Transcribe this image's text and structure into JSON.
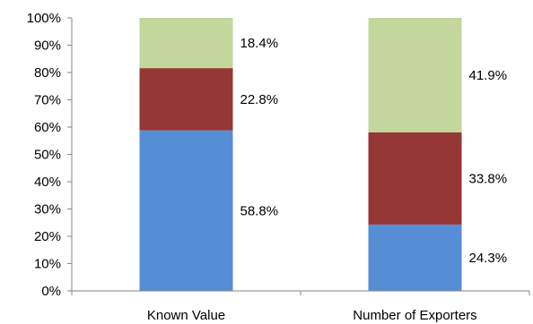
{
  "chart_data": {
    "type": "bar",
    "stacked": true,
    "categories": [
      "Known Value",
      "Number of Exporters"
    ],
    "series": [
      {
        "values": [
          58.8,
          24.3
        ],
        "labels": [
          "58.8%",
          "24.3%"
        ],
        "color": "#558ed5"
      },
      {
        "values": [
          22.8,
          33.8
        ],
        "labels": [
          "22.8%",
          "33.8%"
        ],
        "color": "#953735"
      },
      {
        "values": [
          18.4,
          41.9
        ],
        "labels": [
          "18.4%",
          "41.9%"
        ],
        "color": "#c3d69b"
      }
    ],
    "ylim": [
      0,
      100
    ],
    "yticks": [
      "0%",
      "10%",
      "20%",
      "30%",
      "40%",
      "50%",
      "60%",
      "70%",
      "80%",
      "90%",
      "100%"
    ],
    "xlabel": "",
    "ylabel": "",
    "title": "",
    "grid": false,
    "legend": "none"
  }
}
